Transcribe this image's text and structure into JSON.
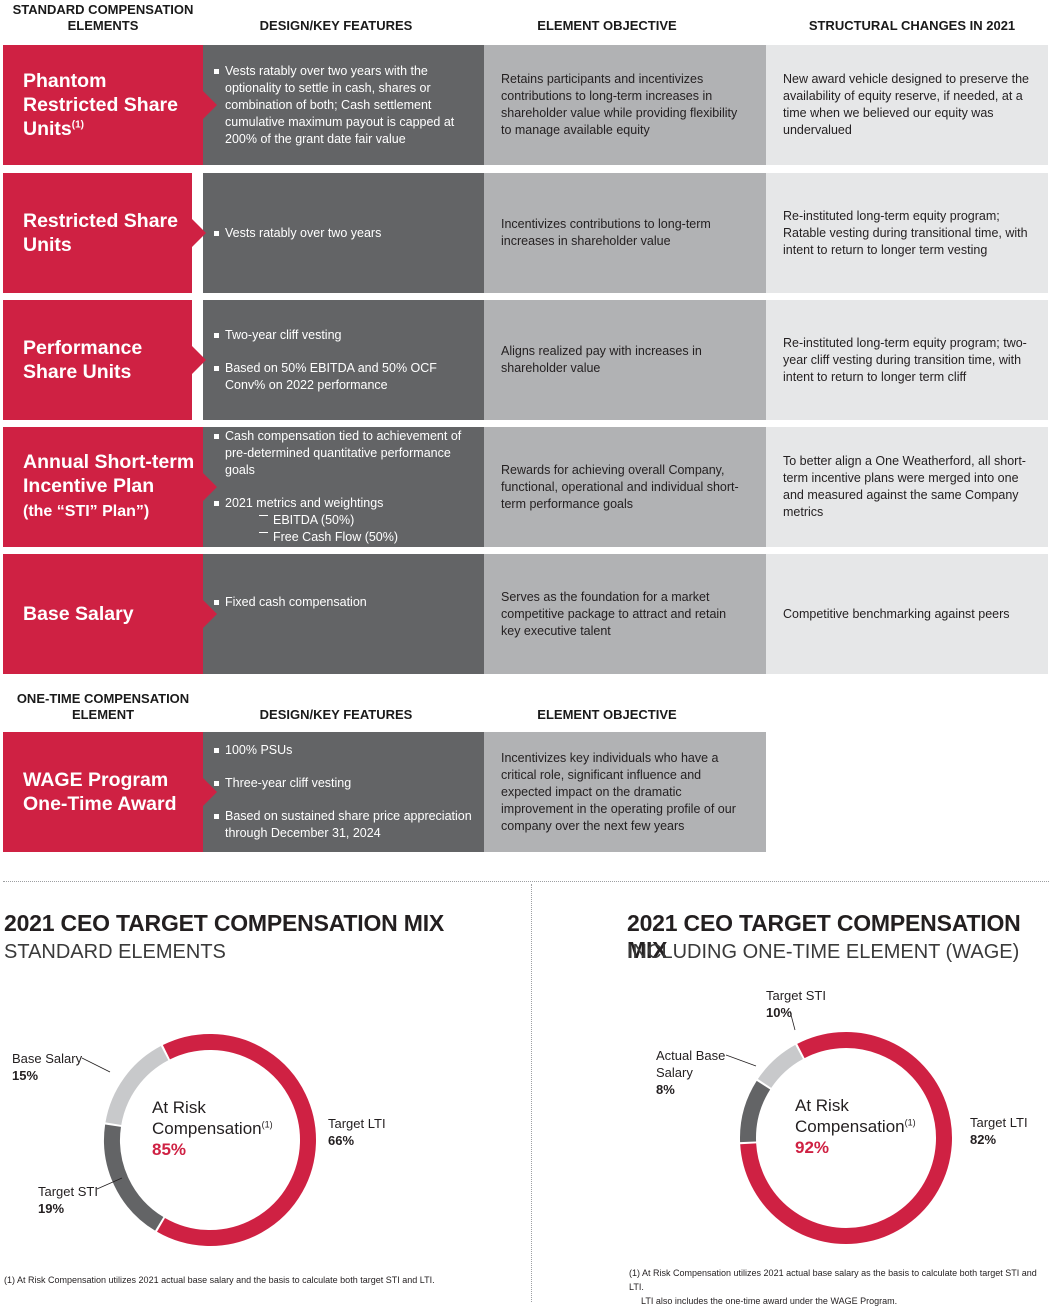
{
  "table1": {
    "headers": [
      "STANDARD COMPENSATION ELEMENTS",
      "DESIGN/KEY FEATURES",
      "ELEMENT OBJECTIVE",
      "STRUCTURAL CHANGES IN 2021"
    ],
    "rows": [
      {
        "element": "Phantom Restricted Share Units",
        "footnote": "(1)",
        "features": [
          "Vests ratably over two years with the optionality to settle in cash, shares or combination of both; Cash settlement cumulative maximum payout is capped at 200% of the grant date fair value"
        ],
        "objective": "Retains participants and incentivizes contributions to long-term increases in shareholder value while providing flexibility to manage available equity",
        "changes": "New award vehicle designed to preserve the availability of equity reserve, if needed, at a time when we believed our equity was undervalued"
      },
      {
        "element": "Restricted Share Units",
        "features": [
          "Vests ratably over two years"
        ],
        "objective": "Incentivizes contributions to long-term increases in shareholder value",
        "changes": "Re-instituted long-term equity program; Ratable vesting during transitional time, with intent to return to longer term vesting"
      },
      {
        "element": "Performance Share Units",
        "features": [
          "Two-year cliff vesting",
          "Based on 50% EBITDA and 50% OCF Conv% on 2022 performance"
        ],
        "objective": "Aligns realized pay with increases in shareholder value",
        "changes": "Re-instituted long-term equity program; two-year cliff vesting during transition time, with intent to return to longer term cliff"
      },
      {
        "element": "Annual Short-term Incentive Plan",
        "element_sub": "(the “STI” Plan”)",
        "features": [
          "Cash compensation tied to achievement of pre-determined quantitative performance goals",
          "2021 metrics and weightings"
        ],
        "subfeatures": [
          "EBITDA (50%)",
          "Free Cash Flow (50%)"
        ],
        "objective": "Rewards for achieving overall Company, functional, operational and individual short-term performance goals",
        "changes": "To better align a One Weatherford, all short-term incentive plans were merged into one and measured against the same Company metrics"
      },
      {
        "element": "Base Salary",
        "features": [
          "Fixed cash compensation"
        ],
        "objective": "Serves as the foundation for a market competitive package to attract and retain key executive talent",
        "changes": "Competitive benchmarking against peers"
      }
    ]
  },
  "table2": {
    "headers": [
      "ONE-TIME COMPENSATION ELEMENT",
      "DESIGN/KEY FEATURES",
      "ELEMENT OBJECTIVE"
    ],
    "row": {
      "element": "WAGE Program One-Time Award",
      "features": [
        "100% PSUs",
        "Three-year cliff vesting",
        "Based on  sustained share price appreciation through December 31, 2024"
      ],
      "objective": "Incentivizes key individuals who have a critical role, significant influence and expected impact on the dramatic improvement in the operating profile of our company over the next few years"
    }
  },
  "mix1": {
    "title": "2021 CEO TARGET COMPENSATION MIX",
    "subtitle": "STANDARD ELEMENTS",
    "center_label": "At Risk Compensation",
    "center_sup": "(1)",
    "center_value": "85%",
    "labels": {
      "base": {
        "name": "Base Salary",
        "value": "15%"
      },
      "sti": {
        "name": "Target STI",
        "value": "19%"
      },
      "lti": {
        "name": "Target LTI",
        "value": "66%"
      }
    },
    "footnote": "(1) At Risk Compensation utilizes 2021 actual base salary and the basis to calculate both target STI and LTI."
  },
  "mix2": {
    "title": "2021 CEO TARGET COMPENSATION MIX",
    "subtitle": "INCLUDING ONE-TIME ELEMENT (WAGE)",
    "center_label": "At Risk Compensation",
    "center_sup": "(1)",
    "center_value": "92%",
    "labels": {
      "sti": {
        "name": "Target STI",
        "value": "10%"
      },
      "base": {
        "name": "Actual Base Salary",
        "value": "8%"
      },
      "lti": {
        "name": "Target LTI",
        "value": "82%"
      }
    },
    "footnote_1": "(1) At Risk Compensation utilizes 2021 actual base salary as the basis to calculate both target STI and LTI.",
    "footnote_2": "LTI also includes the one-time award under the WAGE Program."
  },
  "chart_data": [
    {
      "type": "pie",
      "title": "2021 CEO TARGET COMPENSATION MIX — STANDARD ELEMENTS",
      "categories": [
        "Target LTI",
        "Target STI",
        "Base Salary"
      ],
      "values": [
        66,
        19,
        15
      ],
      "colors": [
        "#cf2143",
        "#636466",
        "#c8c9cb"
      ]
    },
    {
      "type": "pie",
      "title": "2021 CEO TARGET COMPENSATION MIX — INCLUDING ONE-TIME ELEMENT (WAGE)",
      "categories": [
        "Target LTI",
        "Target STI",
        "Actual Base Salary"
      ],
      "values": [
        82,
        10,
        8
      ],
      "colors": [
        "#cf2143",
        "#636466",
        "#c8c9cb"
      ]
    }
  ]
}
